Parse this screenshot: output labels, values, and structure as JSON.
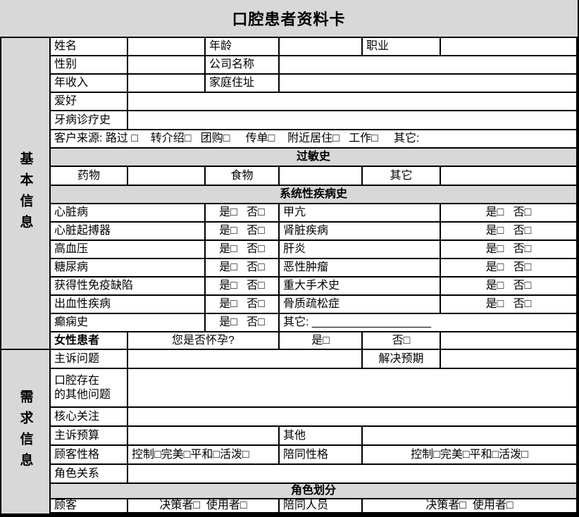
{
  "title": "口腔患者资料卡",
  "colors": {
    "header_bg": "#d8d8d8",
    "border": "#000000"
  },
  "sidebar": {
    "basic": "基本信息",
    "demand": "需求信息"
  },
  "fields": {
    "name": "姓名",
    "age": "年龄",
    "job": "职业",
    "gender": "性别",
    "company": "公司名称",
    "income": "年收入",
    "address": "家庭住址",
    "hobby": "爱好",
    "dental_history": "牙病诊疗史",
    "source": "客户来源: 路过 □    转介绍□   团购□     传单□    附近居住□   工作□     其它:"
  },
  "allergy": {
    "title": "过敏史",
    "drug": "药物",
    "food": "食物",
    "other": "其它"
  },
  "disease": {
    "title": "系统性疾病史",
    "yesno": "是□   否□",
    "pairs": [
      {
        "l": "心脏病",
        "r": "甲亢"
      },
      {
        "l": "心脏起搏器",
        "r": "肾脏疾病"
      },
      {
        "l": "高血压",
        "r": "肝炎"
      },
      {
        "l": "糖尿病",
        "r": "恶性肿瘤"
      },
      {
        "l": "获得性免疫缺陷",
        "r": "重大手术史"
      },
      {
        "l": "出血性疾病",
        "r": "骨质疏松症"
      }
    ],
    "epilepsy": "癫痫史",
    "other": "其它: ___________________"
  },
  "female": {
    "label": "女性患者",
    "question": "您是否怀孕?",
    "yes": "是□",
    "no": "否□"
  },
  "demand": {
    "chief_issue": "主诉问题",
    "expectation": "解决预期",
    "other_oral_issues": "口腔存在\n的其他问题",
    "core_concern": "核心关注",
    "chief_budget": "主诉预算",
    "other": "其他",
    "customer_personality": "顾客性格",
    "companion_personality": "陪同性格",
    "personality_options": "控制□完美□平和□活泼□",
    "role_relation": "角色关系"
  },
  "roles": {
    "title": "角色划分",
    "customer": "顾客",
    "companion": "陪同人员",
    "options": "决策者□  使用者□"
  }
}
